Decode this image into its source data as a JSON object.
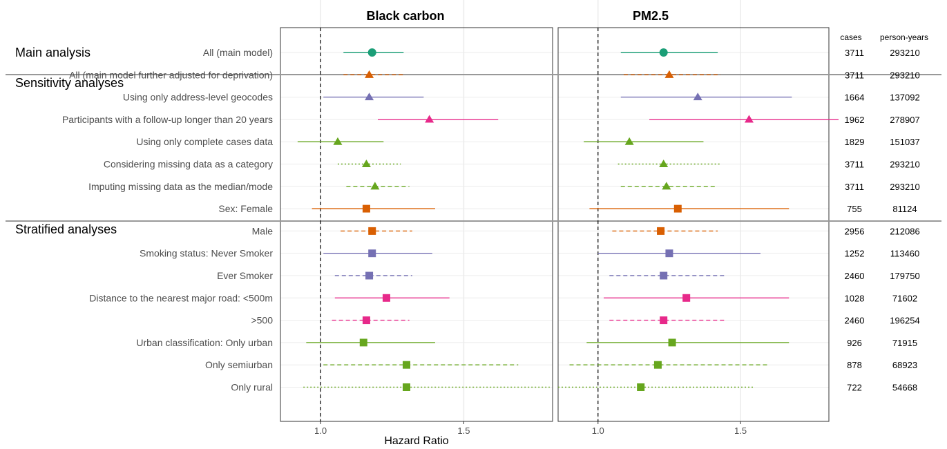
{
  "chart_data": {
    "type": "forest",
    "xlabel": "Hazard Ratio",
    "reference_line": 1.0,
    "panels": [
      {
        "title": "Black carbon",
        "xlim": [
          0.86,
          1.81
        ],
        "ticks": [
          1.0,
          1.5
        ],
        "tick_labels": [
          "1.0",
          "1.5"
        ]
      },
      {
        "title": "PM2.5",
        "xlim": [
          0.86,
          1.81
        ],
        "ticks": [
          1.0,
          1.5
        ],
        "tick_labels": [
          "1.0",
          "1.5"
        ]
      }
    ],
    "columns": {
      "cases": "cases",
      "person_years": "person-years"
    },
    "sections": [
      {
        "label": "Main analysis",
        "start_row": 0
      },
      {
        "label": "Sensitivity analyses",
        "start_row": 1
      },
      {
        "label": "Stratified analyses",
        "start_row": 7
      }
    ],
    "colors": {
      "teal": "#1b9e77",
      "orange": "#d95f02",
      "purple": "#7570b3",
      "pink": "#e7298a",
      "green": "#66a61e",
      "grid": "#ebebeb",
      "separator": "#999999"
    },
    "rows": [
      {
        "label": "All (main model)",
        "color": "teal",
        "shape": "circle",
        "line": "solid",
        "cases": "3711",
        "person_years": "293210",
        "bc": [
          1.18,
          1.08,
          1.29
        ],
        "pm": [
          1.23,
          1.08,
          1.42
        ]
      },
      {
        "label": "All (main model further adjusted for deprivation)",
        "color": "orange",
        "shape": "triangle",
        "line": "dashed",
        "cases": "3711",
        "person_years": "293210",
        "bc": [
          1.17,
          1.08,
          1.29
        ],
        "pm": [
          1.25,
          1.09,
          1.43
        ]
      },
      {
        "label": "Using only address-level geocodes",
        "color": "purple",
        "shape": "triangle",
        "line": "solid",
        "cases": "1664",
        "person_years": "137092",
        "bc": [
          1.17,
          1.01,
          1.36
        ],
        "pm": [
          1.35,
          1.08,
          1.68
        ]
      },
      {
        "label": "Participants with a follow-up longer than 20 years",
        "color": "pink",
        "shape": "triangle",
        "line": "solid",
        "cases": "1962",
        "person_years": "278907",
        "bc": [
          1.38,
          1.2,
          1.62
        ],
        "pm": [
          1.53,
          1.18,
          1.98
        ]
      },
      {
        "label": "Using only complete cases data",
        "color": "green",
        "shape": "triangle",
        "line": "solid",
        "cases": "1829",
        "person_years": "151037",
        "bc": [
          1.06,
          0.92,
          1.22
        ],
        "pm": [
          1.11,
          0.95,
          1.37
        ]
      },
      {
        "label": "Considering missing data as a category",
        "color": "green",
        "shape": "triangle",
        "line": "dotted",
        "cases": "3711",
        "person_years": "293210",
        "bc": [
          1.16,
          1.06,
          1.28
        ],
        "pm": [
          1.23,
          1.07,
          1.43
        ]
      },
      {
        "label": "Imputing missing data as the median/mode",
        "color": "green",
        "shape": "triangle",
        "line": "dashed",
        "cases": "3711",
        "person_years": "293210",
        "bc": [
          1.19,
          1.09,
          1.31
        ],
        "pm": [
          1.24,
          1.08,
          1.41
        ]
      },
      {
        "label": "Sex: Female",
        "color": "orange",
        "shape": "square",
        "line": "solid",
        "cases": "755",
        "person_years": "81124",
        "bc": [
          1.16,
          0.97,
          1.4
        ],
        "pm": [
          1.28,
          0.97,
          1.67
        ]
      },
      {
        "label": "Male",
        "color": "orange",
        "shape": "square",
        "line": "dashed",
        "cases": "2956",
        "person_years": "212086",
        "bc": [
          1.18,
          1.07,
          1.32
        ],
        "pm": [
          1.22,
          1.05,
          1.42
        ]
      },
      {
        "label": "Smoking status: Never Smoker",
        "color": "purple",
        "shape": "square",
        "line": "solid",
        "cases": "1252",
        "person_years": "113460",
        "bc": [
          1.18,
          1.01,
          1.39
        ],
        "pm": [
          1.25,
          1.0,
          1.57
        ]
      },
      {
        "label": "Ever Smoker",
        "color": "purple",
        "shape": "square",
        "line": "dashed",
        "cases": "2460",
        "person_years": "179750",
        "bc": [
          1.17,
          1.05,
          1.32
        ],
        "pm": [
          1.23,
          1.04,
          1.45
        ]
      },
      {
        "label": "Distance to the nearest major road: <500m",
        "color": "pink",
        "shape": "square",
        "line": "solid",
        "cases": "1028",
        "person_years": "71602",
        "bc": [
          1.23,
          1.05,
          1.45
        ],
        "pm": [
          1.31,
          1.02,
          1.67
        ]
      },
      {
        "label": ">500",
        "color": "pink",
        "shape": "square",
        "line": "dashed",
        "cases": "2460",
        "person_years": "196254",
        "bc": [
          1.16,
          1.04,
          1.31
        ],
        "pm": [
          1.23,
          1.04,
          1.45
        ]
      },
      {
        "label": "Urban classification: Only urban",
        "color": "green",
        "shape": "square",
        "line": "solid",
        "cases": "926",
        "person_years": "71915",
        "bc": [
          1.15,
          0.95,
          1.4
        ],
        "pm": [
          1.26,
          0.96,
          1.67
        ]
      },
      {
        "label": "Only semiurban",
        "color": "green",
        "shape": "square",
        "line": "dashed",
        "cases": "878",
        "person_years": "68923",
        "bc": [
          1.3,
          1.01,
          1.69
        ],
        "pm": [
          1.21,
          0.9,
          1.6
        ]
      },
      {
        "label": "Only rural",
        "color": "green",
        "shape": "square",
        "line": "dotted",
        "cases": "722",
        "person_years": "54668",
        "bc": [
          1.3,
          0.94,
          1.8
        ],
        "pm": [
          1.15,
          0.84,
          1.55
        ]
      }
    ]
  }
}
